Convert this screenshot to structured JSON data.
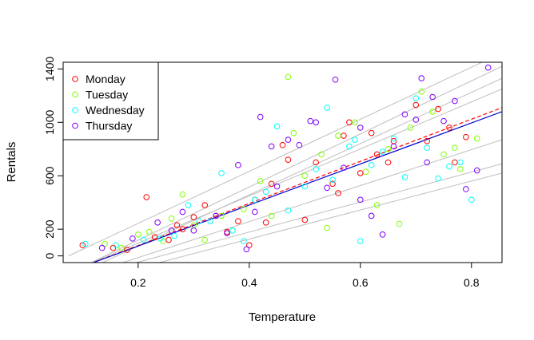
{
  "chart_data": {
    "type": "scatter",
    "xlabel": "Temperature",
    "ylabel": "Rentals",
    "xlim": [
      0.065,
      0.855
    ],
    "ylim": [
      -50,
      1450
    ],
    "xticks": [
      0.2,
      0.4,
      0.6,
      0.8
    ],
    "yticks": [
      0,
      200,
      600,
      1000,
      1400
    ],
    "grid": false,
    "legend": {
      "position": "top-left",
      "entries": [
        {
          "name": "Monday",
          "color": "#ff0000"
        },
        {
          "name": "Tuesday",
          "color": "#80ff00"
        },
        {
          "name": "Wednesday",
          "color": "#00ffff"
        },
        {
          "name": "Thursday",
          "color": "#8000ff"
        }
      ]
    },
    "series": [
      {
        "name": "Monday",
        "color": "#ff0000",
        "points": [
          [
            0.1,
            80
          ],
          [
            0.155,
            60
          ],
          [
            0.18,
            45
          ],
          [
            0.215,
            440
          ],
          [
            0.23,
            140
          ],
          [
            0.255,
            120
          ],
          [
            0.27,
            230
          ],
          [
            0.28,
            200
          ],
          [
            0.3,
            290
          ],
          [
            0.32,
            380
          ],
          [
            0.34,
            300
          ],
          [
            0.36,
            180
          ],
          [
            0.38,
            260
          ],
          [
            0.4,
            80
          ],
          [
            0.41,
            420
          ],
          [
            0.43,
            250
          ],
          [
            0.44,
            540
          ],
          [
            0.46,
            830
          ],
          [
            0.47,
            720
          ],
          [
            0.5,
            270
          ],
          [
            0.52,
            700
          ],
          [
            0.55,
            540
          ],
          [
            0.57,
            900
          ],
          [
            0.58,
            1000
          ],
          [
            0.6,
            620
          ],
          [
            0.62,
            920
          ],
          [
            0.63,
            760
          ],
          [
            0.65,
            700
          ],
          [
            0.66,
            860
          ],
          [
            0.7,
            1130
          ],
          [
            0.72,
            860
          ],
          [
            0.74,
            1100
          ],
          [
            0.76,
            960
          ],
          [
            0.77,
            700
          ],
          [
            0.79,
            890
          ],
          [
            0.56,
            470
          ]
        ]
      },
      {
        "name": "Tuesday",
        "color": "#80ff00",
        "points": [
          [
            0.14,
            90
          ],
          [
            0.17,
            60
          ],
          [
            0.2,
            160
          ],
          [
            0.22,
            180
          ],
          [
            0.245,
            110
          ],
          [
            0.26,
            280
          ],
          [
            0.28,
            460
          ],
          [
            0.3,
            230
          ],
          [
            0.32,
            120
          ],
          [
            0.35,
            300
          ],
          [
            0.37,
            190
          ],
          [
            0.39,
            350
          ],
          [
            0.42,
            560
          ],
          [
            0.44,
            300
          ],
          [
            0.47,
            1340
          ],
          [
            0.48,
            920
          ],
          [
            0.5,
            600
          ],
          [
            0.53,
            760
          ],
          [
            0.54,
            210
          ],
          [
            0.56,
            900
          ],
          [
            0.59,
            1000
          ],
          [
            0.61,
            630
          ],
          [
            0.63,
            380
          ],
          [
            0.65,
            800
          ],
          [
            0.67,
            240
          ],
          [
            0.69,
            960
          ],
          [
            0.71,
            1230
          ],
          [
            0.73,
            1080
          ],
          [
            0.75,
            760
          ],
          [
            0.77,
            810
          ],
          [
            0.78,
            650
          ],
          [
            0.81,
            880
          ]
        ]
      },
      {
        "name": "Wednesday",
        "color": "#00ffff",
        "points": [
          [
            0.105,
            90
          ],
          [
            0.16,
            80
          ],
          [
            0.21,
            120
          ],
          [
            0.24,
            130
          ],
          [
            0.265,
            150
          ],
          [
            0.29,
            380
          ],
          [
            0.31,
            260
          ],
          [
            0.33,
            260
          ],
          [
            0.35,
            620
          ],
          [
            0.37,
            190
          ],
          [
            0.39,
            110
          ],
          [
            0.41,
            420
          ],
          [
            0.43,
            480
          ],
          [
            0.45,
            970
          ],
          [
            0.47,
            340
          ],
          [
            0.5,
            520
          ],
          [
            0.52,
            650
          ],
          [
            0.54,
            1110
          ],
          [
            0.55,
            570
          ],
          [
            0.58,
            820
          ],
          [
            0.59,
            870
          ],
          [
            0.6,
            110
          ],
          [
            0.62,
            680
          ],
          [
            0.64,
            780
          ],
          [
            0.66,
            880
          ],
          [
            0.68,
            590
          ],
          [
            0.7,
            1180
          ],
          [
            0.72,
            810
          ],
          [
            0.74,
            580
          ],
          [
            0.76,
            670
          ],
          [
            0.78,
            700
          ],
          [
            0.8,
            420
          ]
        ]
      },
      {
        "name": "Thursday",
        "color": "#8000ff",
        "points": [
          [
            0.135,
            60
          ],
          [
            0.19,
            130
          ],
          [
            0.235,
            250
          ],
          [
            0.26,
            190
          ],
          [
            0.28,
            330
          ],
          [
            0.3,
            190
          ],
          [
            0.34,
            300
          ],
          [
            0.36,
            170
          ],
          [
            0.38,
            680
          ],
          [
            0.395,
            50
          ],
          [
            0.41,
            330
          ],
          [
            0.42,
            1040
          ],
          [
            0.44,
            820
          ],
          [
            0.45,
            520
          ],
          [
            0.47,
            870
          ],
          [
            0.49,
            830
          ],
          [
            0.51,
            1010
          ],
          [
            0.52,
            1000
          ],
          [
            0.54,
            510
          ],
          [
            0.555,
            1320
          ],
          [
            0.57,
            660
          ],
          [
            0.6,
            420
          ],
          [
            0.62,
            300
          ],
          [
            0.64,
            160
          ],
          [
            0.66,
            820
          ],
          [
            0.68,
            1060
          ],
          [
            0.7,
            1020
          ],
          [
            0.71,
            1330
          ],
          [
            0.73,
            1190
          ],
          [
            0.75,
            1010
          ],
          [
            0.77,
            1160
          ],
          [
            0.79,
            500
          ],
          [
            0.81,
            640
          ],
          [
            0.83,
            1410
          ],
          [
            0.6,
            960
          ],
          [
            0.72,
            700
          ]
        ]
      }
    ],
    "fit_lines": [
      {
        "name": "Monday",
        "color": "#ff0000",
        "dash": true,
        "from": [
          0.1,
          -80
        ],
        "to": [
          0.855,
          1110
        ]
      },
      {
        "name": "Thursday",
        "color": "#0000cc",
        "dash": false,
        "from": [
          0.1,
          -80
        ],
        "to": [
          0.855,
          1080
        ]
      }
    ],
    "reference_lines": [
      {
        "from": [
          0.075,
          0
        ],
        "to": [
          0.855,
          1520
        ]
      },
      {
        "from": [
          0.1,
          -80
        ],
        "to": [
          0.855,
          1420
        ]
      },
      {
        "from": [
          0.12,
          -80
        ],
        "to": [
          0.855,
          1330
        ]
      },
      {
        "from": [
          0.1,
          -80
        ],
        "to": [
          0.855,
          1250
        ]
      },
      {
        "from": [
          0.15,
          -80
        ],
        "to": [
          0.855,
          870
        ]
      },
      {
        "from": [
          0.17,
          -80
        ],
        "to": [
          0.855,
          690
        ]
      },
      {
        "from": [
          0.21,
          -80
        ],
        "to": [
          0.855,
          620
        ]
      }
    ]
  }
}
